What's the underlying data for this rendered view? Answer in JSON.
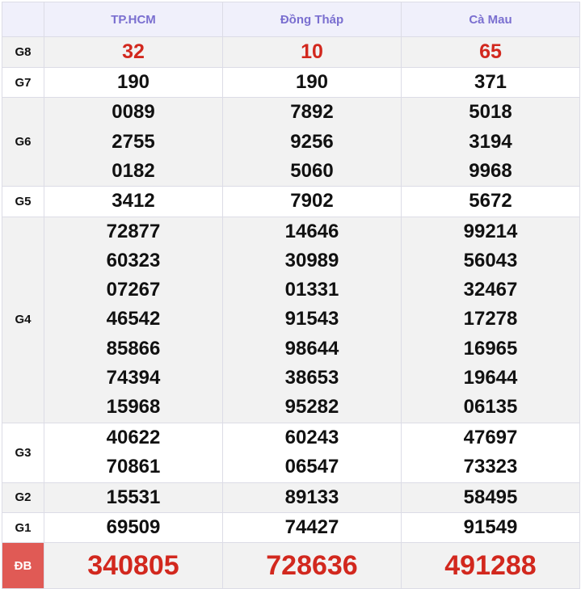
{
  "header": {
    "columns": [
      "TP.HCM",
      "Đồng Tháp",
      "Cà Mau"
    ]
  },
  "rows": [
    {
      "label": "G8",
      "values": [
        [
          "32"
        ],
        [
          "10"
        ],
        [
          "65"
        ]
      ]
    },
    {
      "label": "G7",
      "values": [
        [
          "190"
        ],
        [
          "190"
        ],
        [
          "371"
        ]
      ]
    },
    {
      "label": "G6",
      "values": [
        [
          "0089",
          "2755",
          "0182"
        ],
        [
          "7892",
          "9256",
          "5060"
        ],
        [
          "5018",
          "3194",
          "9968"
        ]
      ]
    },
    {
      "label": "G5",
      "values": [
        [
          "3412"
        ],
        [
          "7902"
        ],
        [
          "5672"
        ]
      ]
    },
    {
      "label": "G4",
      "values": [
        [
          "72877",
          "60323",
          "07267",
          "46542",
          "85866",
          "74394",
          "15968"
        ],
        [
          "14646",
          "30989",
          "01331",
          "91543",
          "98644",
          "38653",
          "95282"
        ],
        [
          "99214",
          "56043",
          "32467",
          "17278",
          "16965",
          "19644",
          "06135"
        ]
      ]
    },
    {
      "label": "G3",
      "values": [
        [
          "40622",
          "70861"
        ],
        [
          "60243",
          "06547"
        ],
        [
          "47697",
          "73323"
        ]
      ]
    },
    {
      "label": "G2",
      "values": [
        [
          "15531"
        ],
        [
          "89133"
        ],
        [
          "58495"
        ]
      ]
    },
    {
      "label": "G1",
      "values": [
        [
          "69509"
        ],
        [
          "74427"
        ],
        [
          "91549"
        ]
      ]
    },
    {
      "label": "ĐB",
      "values": [
        [
          "340805"
        ],
        [
          "728636"
        ],
        [
          "491288"
        ]
      ]
    }
  ],
  "colors": {
    "header_text": "#7a6fd0",
    "highlight": "#d2281e",
    "special_label_bg": "#e05a55"
  }
}
